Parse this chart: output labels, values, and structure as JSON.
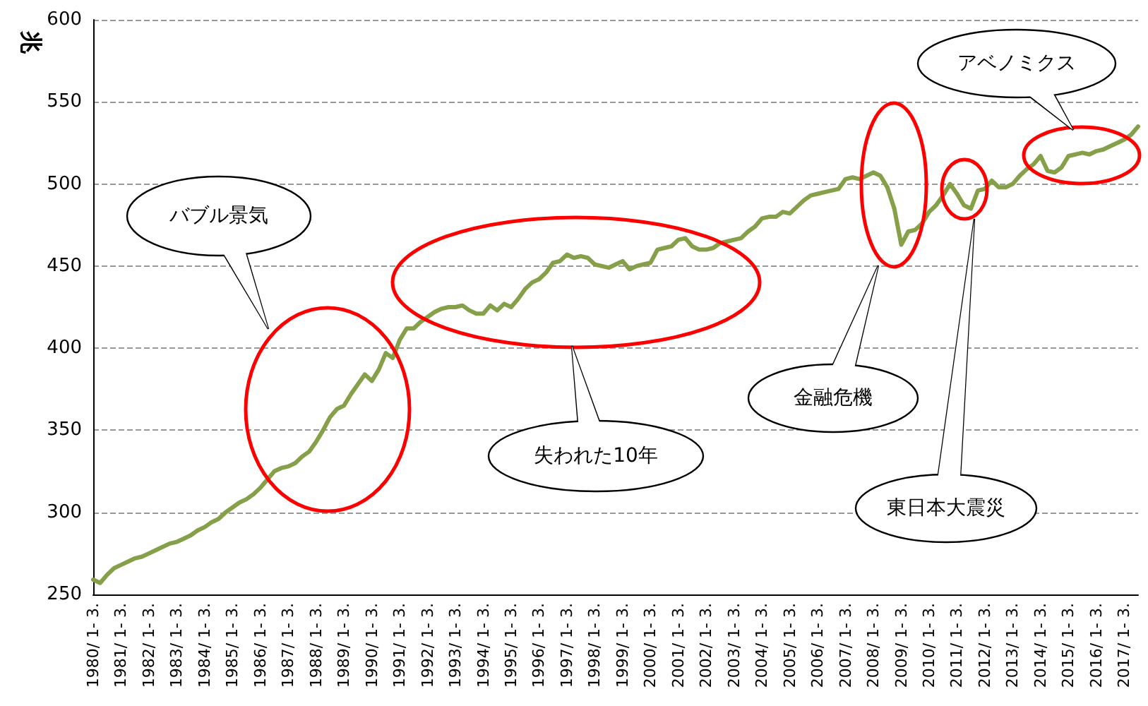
{
  "chart_data": {
    "type": "line",
    "ylabel": "兆",
    "categories": [
      "1980/ 1- 3.",
      null,
      null,
      null,
      "1981/ 1- 3.",
      null,
      null,
      null,
      "1982/ 1- 3.",
      null,
      null,
      null,
      "1983/ 1- 3.",
      null,
      null,
      null,
      "1984/ 1- 3.",
      null,
      null,
      null,
      "1985/ 1- 3.",
      null,
      null,
      null,
      "1986/ 1- 3.",
      null,
      null,
      null,
      "1987/ 1- 3.",
      null,
      null,
      null,
      "1988/ 1- 3.",
      null,
      null,
      null,
      "1989/ 1- 3.",
      null,
      null,
      null,
      "1990/ 1- 3.",
      null,
      null,
      null,
      "1991/ 1- 3.",
      null,
      null,
      null,
      "1992/ 1- 3.",
      null,
      null,
      null,
      "1993/ 1- 3.",
      null,
      null,
      null,
      "1994/ 1- 3.",
      null,
      null,
      null,
      "1995/ 1- 3.",
      null,
      null,
      null,
      "1996/ 1- 3.",
      null,
      null,
      null,
      "1997/ 1- 3.",
      null,
      null,
      null,
      "1998/ 1- 3.",
      null,
      null,
      null,
      "1999/ 1- 3.",
      null,
      null,
      null,
      "2000/ 1- 3.",
      null,
      null,
      null,
      "2001/ 1- 3.",
      null,
      null,
      null,
      "2002/ 1- 3.",
      null,
      null,
      null,
      "2003/ 1- 3.",
      null,
      null,
      null,
      "2004/ 1- 3.",
      null,
      null,
      null,
      "2005/ 1- 3.",
      null,
      null,
      null,
      "2006/ 1- 3.",
      null,
      null,
      null,
      "2007/ 1- 3.",
      null,
      null,
      null,
      "2008/ 1- 3.",
      null,
      null,
      null,
      "2009/ 1- 3.",
      null,
      null,
      null,
      "2010/ 1- 3.",
      null,
      null,
      null,
      "2011/ 1- 3.",
      null,
      null,
      null,
      "2012/ 1- 3.",
      null,
      null,
      null,
      "2013/ 1- 3.",
      null,
      null,
      null,
      "2014/ 1- 3.",
      null,
      null,
      null,
      "2015/ 1- 3.",
      null,
      null,
      null,
      "2016/ 1- 3.",
      null,
      null,
      null,
      "2017/ 1- 3.",
      null,
      null
    ],
    "series": [
      {
        "color": "#86a04a",
        "values": [
          259,
          257,
          262,
          266,
          268,
          270,
          272,
          273,
          275,
          277,
          279,
          281,
          282,
          284,
          286,
          289,
          291,
          294,
          296,
          300,
          303,
          306,
          308,
          311,
          315,
          320,
          325,
          327,
          328,
          330,
          334,
          337,
          343,
          350,
          358,
          363,
          365,
          372,
          378,
          384,
          380,
          387,
          397,
          394,
          405,
          412,
          412,
          416,
          419,
          422,
          424,
          425,
          425,
          426,
          423,
          421,
          421,
          426,
          423,
          427,
          425,
          430,
          436,
          440,
          442,
          446,
          452,
          453,
          457,
          455,
          456,
          455,
          451,
          450,
          449,
          451,
          453,
          448,
          450,
          451,
          452,
          460,
          461,
          462,
          466,
          467,
          462,
          460,
          460,
          461,
          464,
          465,
          466,
          467,
          471,
          474,
          479,
          480,
          480,
          483,
          482,
          486,
          490,
          493,
          494,
          495,
          496,
          497,
          503,
          504,
          503,
          505,
          507,
          505,
          498,
          485,
          463,
          471,
          472,
          476,
          483,
          487,
          493,
          500,
          494,
          487,
          485,
          496,
          497,
          502,
          498,
          498,
          500,
          505,
          509,
          512,
          517,
          508,
          507,
          510,
          517,
          518,
          519,
          518,
          520,
          521,
          523,
          525,
          527,
          530,
          535
        ]
      }
    ],
    "ylim": [
      250,
      600
    ],
    "yticks": [
      250,
      300,
      350,
      400,
      450,
      500,
      550,
      600
    ],
    "grid": "y",
    "marker": "none",
    "line_style": "solid",
    "annotations": [
      "バブル景気",
      "失われた10年",
      "金融危機",
      "東日本大震災",
      "アベノミクス"
    ]
  }
}
